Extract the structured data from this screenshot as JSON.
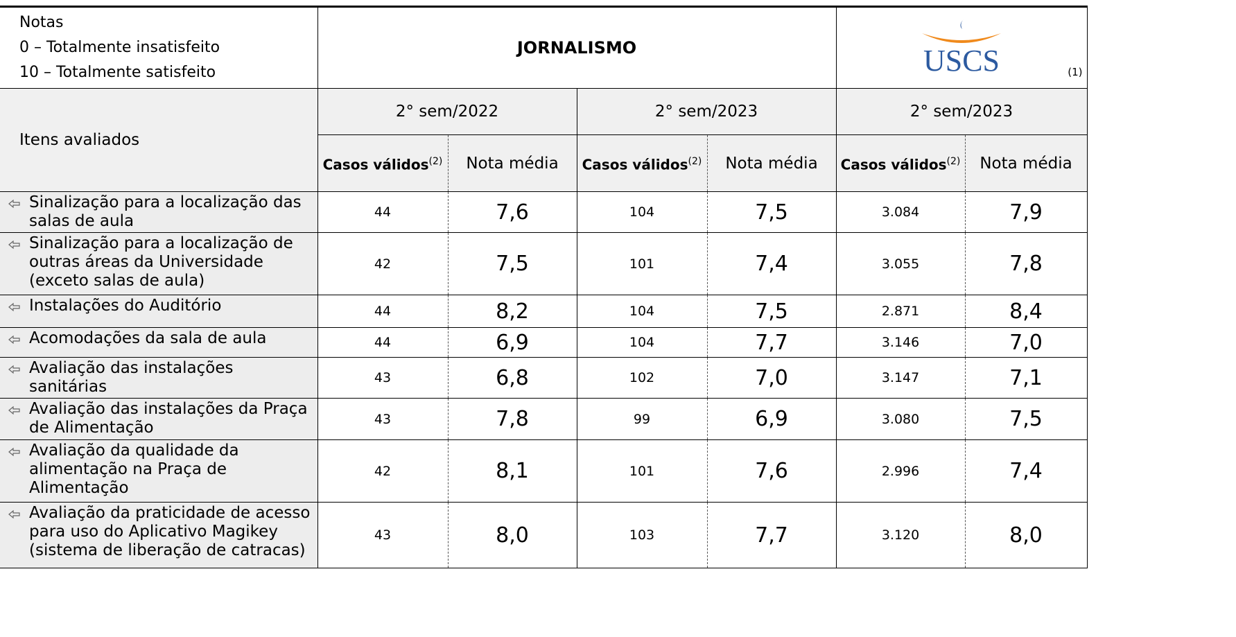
{
  "header": {
    "notes": [
      "Notas",
      "0 – Totalmente insatisfeito",
      "10 – Totalmente satisfeito"
    ],
    "title": "JORNALISMO",
    "logo": "USCS",
    "logo_note": "(1)"
  },
  "table": {
    "row_header": "Itens avaliados",
    "periods": [
      "2° sem/2022",
      "2° sem/2023",
      "2° sem/2023"
    ],
    "subheaders": {
      "cases": "Casos válidos",
      "cases_note": "(2)",
      "mean": "Nota média"
    },
    "rows": [
      [
        "Sinalização para a localização das salas de aula",
        "44",
        "7,6",
        "104",
        "7,5",
        "3.084",
        "7,9"
      ],
      [
        "Sinalização para a localização de outras áreas da Universidade (exceto salas de aula)",
        "42",
        "7,5",
        "101",
        "7,4",
        "3.055",
        "7,8"
      ],
      [
        "Instalações do Auditório",
        "44",
        "8,2",
        "104",
        "7,5",
        "2.871",
        "8,4"
      ],
      [
        "Acomodações da sala de aula",
        "44",
        "6,9",
        "104",
        "7,7",
        "3.146",
        "7,0"
      ],
      [
        "Avaliação das instalações sanitárias",
        "43",
        "6,8",
        "102",
        "7,0",
        "3.147",
        "7,1"
      ],
      [
        "Avaliação das instalações da Praça de Alimentação",
        "43",
        "7,8",
        "99",
        "6,9",
        "3.080",
        "7,5"
      ],
      [
        "Avaliação da qualidade da alimentação na Praça de Alimentação",
        "42",
        "8,1",
        "101",
        "7,6",
        "2.996",
        "7,4"
      ],
      [
        "Avaliação da praticidade de acesso para uso do Aplicativo Magikey (sistema de liberação de catracas)",
        "43",
        "8,0",
        "103",
        "7,7",
        "3.120",
        "8,0"
      ]
    ]
  }
}
